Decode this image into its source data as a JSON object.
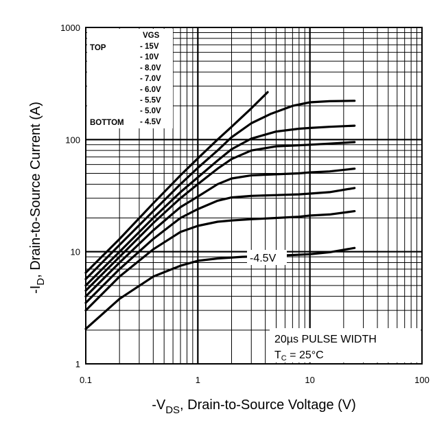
{
  "chart_data": {
    "type": "line",
    "x_scale": "log",
    "y_scale": "log",
    "xlim": [
      0.1,
      100
    ],
    "ylim": [
      1,
      1000
    ],
    "grid": true,
    "xlabel": "-V",
    "xlabel_sub": "DS",
    "xlabel_rest": ", Drain-to-Source Voltage (V)",
    "ylabel": "-I",
    "ylabel_sub": "D",
    "ylabel_rest": ", Drain-to-Source Current (A)",
    "x_ticks": [
      "0.1",
      "1",
      "10",
      "100"
    ],
    "y_ticks": [
      "1",
      "10",
      "100",
      "1000"
    ],
    "legend": {
      "header": "VGS",
      "top_label": "TOP",
      "bottom_label": "BOTTOM",
      "entries": [
        "- 15V",
        "- 10V",
        "- 8.0V",
        "- 7.0V",
        "- 6.0V",
        "- 5.5V",
        "- 5.0V",
        "- 4.5V"
      ]
    },
    "curve_label": "-4.5V",
    "note_line1": "20µs PULSE WIDTH",
    "note_line2_prefix": "T",
    "note_line2_sub": "C",
    "note_line2_rest": " = 25°C",
    "series": [
      {
        "name": "- 15V",
        "x": [
          0.1,
          0.2,
          0.4,
          0.7,
          1.0,
          1.5,
          2.0,
          3.0,
          4.2
        ],
        "y": [
          6.5,
          13,
          27,
          48,
          68,
          100,
          130,
          190,
          265
        ]
      },
      {
        "name": "- 10V",
        "x": [
          0.1,
          0.2,
          0.4,
          0.7,
          1.0,
          1.5,
          2.0,
          3.0,
          4.5,
          7.0,
          10,
          15,
          25
        ],
        "y": [
          5.7,
          11.5,
          23,
          40,
          56,
          80,
          105,
          140,
          170,
          200,
          215,
          220,
          222
        ]
      },
      {
        "name": "- 8.0V",
        "x": [
          0.1,
          0.2,
          0.4,
          0.7,
          1.0,
          1.5,
          2.0,
          3.0,
          5.0,
          8.0,
          10,
          15,
          25
        ],
        "y": [
          5.0,
          10,
          20,
          34,
          46,
          65,
          82,
          102,
          118,
          125,
          127,
          130,
          133
        ]
      },
      {
        "name": "- 7.0V",
        "x": [
          0.1,
          0.2,
          0.4,
          0.7,
          1.0,
          1.5,
          2.0,
          3.0,
          5.0,
          8.0,
          10,
          15,
          25
        ],
        "y": [
          4.5,
          9,
          18,
          30,
          40,
          55,
          67,
          80,
          87,
          89,
          90,
          92,
          95
        ]
      },
      {
        "name": "- 6.0V",
        "x": [
          0.1,
          0.2,
          0.4,
          0.7,
          1.0,
          1.5,
          2.0,
          3.0,
          5.0,
          8.0,
          10,
          15,
          25
        ],
        "y": [
          4.0,
          8,
          15.5,
          25,
          31,
          40,
          45,
          48,
          49,
          50,
          51,
          52,
          55
        ]
      },
      {
        "name": "- 5.5V",
        "x": [
          0.1,
          0.2,
          0.4,
          0.7,
          1.0,
          1.5,
          2.0,
          3.0,
          5.0,
          8.0,
          10,
          15,
          25
        ],
        "y": [
          3.5,
          7,
          13,
          20,
          24,
          28.5,
          30.5,
          31.5,
          32,
          32.5,
          33,
          34,
          37
        ]
      },
      {
        "name": "- 5.0V",
        "x": [
          0.1,
          0.2,
          0.4,
          0.7,
          1.0,
          1.5,
          2.0,
          3.0,
          5.0,
          8.0,
          10,
          15,
          25
        ],
        "y": [
          3.0,
          6,
          10.5,
          15,
          17,
          18.5,
          19,
          19.5,
          20,
          20.5,
          21,
          21.5,
          23
        ]
      },
      {
        "name": "- 4.5V",
        "x": [
          0.1,
          0.2,
          0.4,
          0.7,
          1.0,
          1.5,
          2.5,
          5.0,
          10,
          15,
          25
        ],
        "y": [
          2.05,
          3.8,
          6.0,
          7.5,
          8.3,
          8.7,
          9.0,
          9.2,
          9.5,
          9.9,
          10.8
        ]
      }
    ]
  }
}
